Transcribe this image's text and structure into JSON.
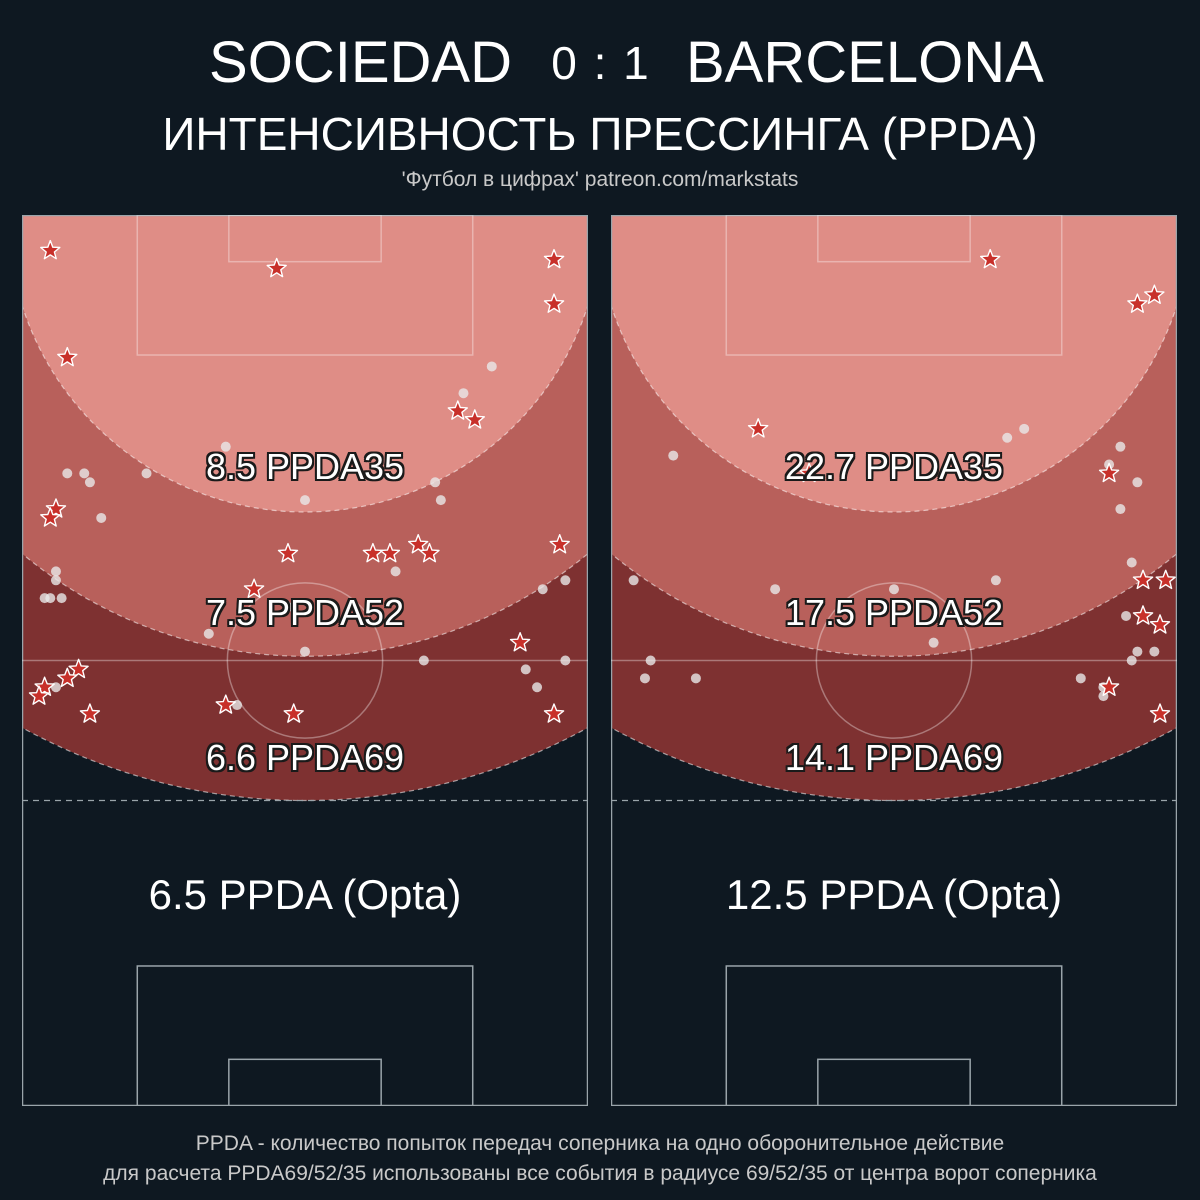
{
  "header": {
    "home_team": "SOCIEDAD",
    "score": "0 : 1",
    "away_team": "BARCELONA",
    "subtitle": "ИНТЕНСИВНОСТЬ ПРЕССИНГА (PPDA)",
    "credit": "'Футбол в цифрах' patreon.com/markstats"
  },
  "footer": {
    "line1": "PPDA - количество попыток передач соперника на одно оборонительное действие",
    "line2": "для расчета PPDA69/52/35 использованы все события в радиусе 69/52/35 от центра ворот соперника"
  },
  "colors": {
    "background": "#0e1821",
    "zone35": "#df8d86",
    "zone52": "#b8605b",
    "zone69": "#7e3131",
    "star_fill": "#c8302a",
    "star_stroke": "#ffffff",
    "dot_fill": "#e8e8e8",
    "pitch_line": "#9aa4aa"
  },
  "chart_data": [
    {
      "type": "scatter",
      "team": "SOCIEDAD",
      "zones": [
        {
          "radius": 35,
          "label": "8.5 PPDA35"
        },
        {
          "radius": 52,
          "label": "7.5 PPDA52"
        },
        {
          "radius": 69,
          "label": "6.6 PPDA69"
        }
      ],
      "opta_label": "6.5 PPDA (Opta)",
      "xlim": [
        0,
        100
      ],
      "ylim": [
        0,
        100
      ],
      "stars": [
        [
          5,
          96
        ],
        [
          45,
          94
        ],
        [
          94,
          95
        ],
        [
          94,
          90
        ],
        [
          8,
          84
        ],
        [
          77,
          78
        ],
        [
          80,
          77
        ],
        [
          6,
          67
        ],
        [
          5,
          66
        ],
        [
          95,
          63
        ],
        [
          70,
          63
        ],
        [
          72,
          62
        ],
        [
          47,
          62
        ],
        [
          62,
          62
        ],
        [
          65,
          62
        ],
        [
          41,
          58
        ],
        [
          88,
          52
        ],
        [
          10,
          49
        ],
        [
          8,
          48
        ],
        [
          4,
          47
        ],
        [
          3,
          46
        ],
        [
          12,
          44
        ],
        [
          36,
          45
        ],
        [
          48,
          44
        ],
        [
          94,
          44
        ]
      ],
      "dots": [
        [
          83,
          83
        ],
        [
          78,
          80
        ],
        [
          36,
          74
        ],
        [
          22,
          71
        ],
        [
          8,
          71
        ],
        [
          11,
          71
        ],
        [
          12,
          70
        ],
        [
          73,
          70
        ],
        [
          74,
          68
        ],
        [
          50,
          68
        ],
        [
          14,
          66
        ],
        [
          96,
          59
        ],
        [
          6,
          60
        ],
        [
          6,
          59
        ],
        [
          92,
          58
        ],
        [
          7,
          57
        ],
        [
          4,
          57
        ],
        [
          5,
          57
        ],
        [
          66,
          60
        ],
        [
          47,
          56
        ],
        [
          33,
          53
        ],
        [
          50,
          51
        ],
        [
          71,
          50
        ],
        [
          89,
          49
        ],
        [
          96,
          50
        ],
        [
          6,
          47
        ],
        [
          91,
          47
        ],
        [
          38,
          45
        ]
      ]
    },
    {
      "type": "scatter",
      "team": "BARCELONA",
      "zones": [
        {
          "radius": 35,
          "label": "22.7 PPDA35"
        },
        {
          "radius": 52,
          "label": "17.5 PPDA52"
        },
        {
          "radius": 69,
          "label": "14.1 PPDA69"
        }
      ],
      "opta_label": "12.5 PPDA (Opta)",
      "xlim": [
        0,
        100
      ],
      "ylim": [
        0,
        100
      ],
      "stars": [
        [
          67,
          95
        ],
        [
          93,
          90
        ],
        [
          96,
          91
        ],
        [
          26,
          76
        ],
        [
          35,
          71
        ],
        [
          88,
          71
        ],
        [
          94,
          59
        ],
        [
          98,
          59
        ],
        [
          94,
          55
        ],
        [
          97,
          54
        ],
        [
          88,
          47
        ],
        [
          97,
          44
        ]
      ],
      "dots": [
        [
          73,
          76
        ],
        [
          90,
          74
        ],
        [
          88,
          72
        ],
        [
          70,
          75
        ],
        [
          11,
          73
        ],
        [
          88,
          71
        ],
        [
          93,
          70
        ],
        [
          90,
          67
        ],
        [
          4,
          59
        ],
        [
          29,
          58
        ],
        [
          50,
          58
        ],
        [
          68,
          59
        ],
        [
          92,
          61
        ],
        [
          91,
          55
        ],
        [
          57,
          52
        ],
        [
          93,
          51
        ],
        [
          96,
          51
        ],
        [
          7,
          50
        ],
        [
          6,
          48
        ],
        [
          15,
          48
        ],
        [
          83,
          48
        ],
        [
          92,
          50
        ],
        [
          87,
          47
        ],
        [
          87,
          46
        ]
      ]
    }
  ]
}
